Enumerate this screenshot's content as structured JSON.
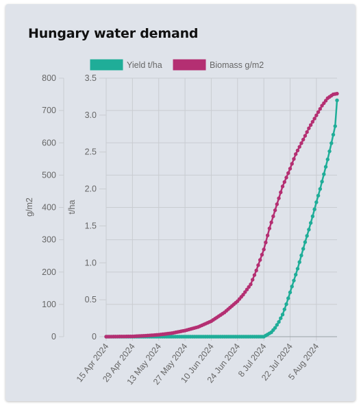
{
  "card": {
    "title": "Hungary water demand"
  },
  "colors": {
    "yield": "#1fad98",
    "biomass": "#b42f72",
    "card_bg": "#dfe3ea",
    "grid": "#c9ccd1"
  },
  "chart_data": {
    "type": "line",
    "legend_placement": "top",
    "grid": true,
    "xlabel": "",
    "x_start": "2024-04-15",
    "x_end": "2024-08-16",
    "xticks": [
      "15 Apr 2024",
      "29 Apr 2024",
      "13 May 2024",
      "27 May 2024",
      "10 Jun 2024",
      "24 Jun 2024",
      "8 Jul 2024",
      "22 Jul 2024",
      "5 Aug 2024"
    ],
    "y_left": {
      "label": "g/m2",
      "lim": [
        0,
        800
      ],
      "ticks": [
        "0",
        "100",
        "200",
        "300",
        "400",
        "500",
        "600",
        "700",
        "800"
      ]
    },
    "y_right": {
      "label": "t/ha",
      "lim": [
        0,
        3.5
      ],
      "ticks": [
        "0",
        "0.5",
        "1.0",
        "1.5",
        "2.0",
        "2.5",
        "3.0",
        "3.5"
      ]
    },
    "series": [
      {
        "name": "Yield t/ha",
        "axis": "t/ha",
        "color": "#1fad98",
        "points": [
          [
            "2024-04-15",
            0
          ],
          [
            "2024-07-08",
            0
          ],
          [
            "2024-07-10",
            0.03
          ],
          [
            "2024-07-12",
            0.06
          ],
          [
            "2024-07-14",
            0.12
          ],
          [
            "2024-07-16",
            0.2
          ],
          [
            "2024-07-18",
            0.3
          ],
          [
            "2024-07-20",
            0.44
          ],
          [
            "2024-07-22",
            0.6
          ],
          [
            "2024-07-24",
            0.76
          ],
          [
            "2024-07-26",
            0.92
          ],
          [
            "2024-07-28",
            1.1
          ],
          [
            "2024-07-30",
            1.28
          ],
          [
            "2024-08-01",
            1.45
          ],
          [
            "2024-08-03",
            1.63
          ],
          [
            "2024-08-05",
            1.82
          ],
          [
            "2024-08-07",
            2.0
          ],
          [
            "2024-08-09",
            2.2
          ],
          [
            "2024-08-11",
            2.4
          ],
          [
            "2024-08-13",
            2.62
          ],
          [
            "2024-08-15",
            2.85
          ],
          [
            "2024-08-16",
            3.2
          ]
        ]
      },
      {
        "name": "Biomass g/m2",
        "axis": "g/m2",
        "color": "#b42f72",
        "points": [
          [
            "2024-04-15",
            0
          ],
          [
            "2024-04-29",
            1
          ],
          [
            "2024-05-06",
            3
          ],
          [
            "2024-05-13",
            6
          ],
          [
            "2024-05-20",
            11
          ],
          [
            "2024-05-27",
            19
          ],
          [
            "2024-06-03",
            30
          ],
          [
            "2024-06-10",
            48
          ],
          [
            "2024-06-17",
            75
          ],
          [
            "2024-06-24",
            110
          ],
          [
            "2024-06-27",
            130
          ],
          [
            "2024-07-01",
            162
          ],
          [
            "2024-07-04",
            205
          ],
          [
            "2024-07-08",
            270
          ],
          [
            "2024-07-11",
            335
          ],
          [
            "2024-07-15",
            410
          ],
          [
            "2024-07-18",
            465
          ],
          [
            "2024-07-22",
            520
          ],
          [
            "2024-07-25",
            565
          ],
          [
            "2024-07-29",
            610
          ],
          [
            "2024-08-01",
            645
          ],
          [
            "2024-08-05",
            685
          ],
          [
            "2024-08-08",
            715
          ],
          [
            "2024-08-11",
            738
          ],
          [
            "2024-08-14",
            750
          ],
          [
            "2024-08-16",
            752
          ]
        ]
      }
    ]
  }
}
